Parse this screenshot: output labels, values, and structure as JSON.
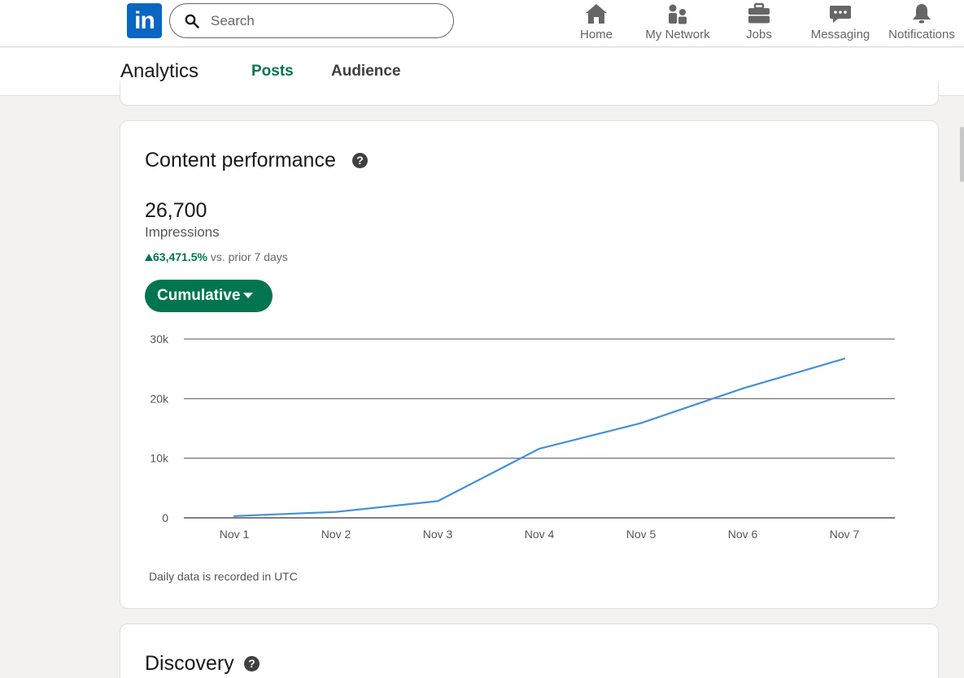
{
  "nav": {
    "logo_text": "in",
    "search_placeholder": "Search",
    "items": [
      {
        "label": "Home",
        "icon": "home-icon"
      },
      {
        "label": "My Network",
        "icon": "network-icon"
      },
      {
        "label": "Jobs",
        "icon": "briefcase-icon"
      },
      {
        "label": "Messaging",
        "icon": "messaging-icon"
      },
      {
        "label": "Notifications",
        "icon": "bell-icon"
      }
    ]
  },
  "subnav": {
    "title": "Analytics",
    "tabs": [
      {
        "label": "Posts",
        "active": true
      },
      {
        "label": "Audience",
        "active": false
      }
    ]
  },
  "content_performance": {
    "title": "Content performance",
    "help_glyph": "?",
    "metric_value": "26,700",
    "metric_label": "Impressions",
    "change_value": "63,471.5%",
    "change_suffix": "vs. prior 7 days",
    "dropdown_label": "Cumulative",
    "footnote": "Daily data is recorded in UTC"
  },
  "discovery": {
    "title": "Discovery",
    "help_glyph": "?"
  },
  "colors": {
    "accent_green": "#01754f",
    "line_blue": "#4390d9",
    "linkedin_blue": "#0a66c2"
  },
  "chart_data": {
    "type": "line",
    "categories": [
      "Nov 1",
      "Nov 2",
      "Nov 3",
      "Nov 4",
      "Nov 5",
      "Nov 6",
      "Nov 7"
    ],
    "series": [
      {
        "values": [
          300,
          1000,
          2800,
          11600,
          15900,
          21700,
          26700
        ]
      }
    ],
    "ylim": [
      0,
      30000
    ],
    "yticks": [
      0,
      10000,
      20000,
      30000
    ],
    "ytick_labels": [
      "0",
      "10k",
      "20k",
      "30k"
    ],
    "grid": true,
    "legend": "none"
  }
}
